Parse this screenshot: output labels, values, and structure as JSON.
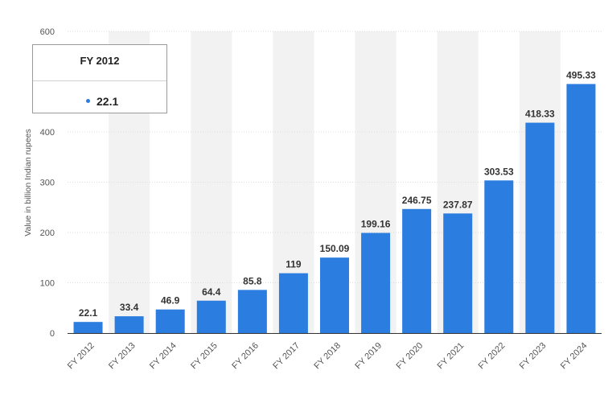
{
  "colors": {
    "bar": "#2b7de0",
    "grid": "#dddddd",
    "band": "#f2f2f2"
  },
  "tooltip": {
    "title": "FY 2012",
    "value": "22.1"
  },
  "chart_data": {
    "type": "bar",
    "ylabel": "Value in billion Indian rupees",
    "xlabel": "",
    "ylim": [
      0,
      600
    ],
    "yticks": [
      0,
      100,
      200,
      300,
      400,
      600
    ],
    "grid": true,
    "categories": [
      "FY 2012",
      "FY 2013",
      "FY 2014",
      "FY 2015",
      "FY 2016",
      "FY 2017",
      "FY 2018",
      "FY 2019",
      "FY 2020",
      "FY 2021",
      "FY 2022",
      "FY 2023",
      "FY 2024"
    ],
    "values": [
      22.1,
      33.4,
      46.9,
      64.4,
      85.8,
      119,
      150.09,
      199.16,
      246.75,
      237.87,
      303.53,
      418.33,
      495.33
    ],
    "value_labels": [
      "22.1",
      "33.4",
      "46.9",
      "64.4",
      "85.8",
      "119",
      "150.09",
      "199.16",
      "246.75",
      "237.87",
      "303.53",
      "418.33",
      "495.33"
    ]
  }
}
